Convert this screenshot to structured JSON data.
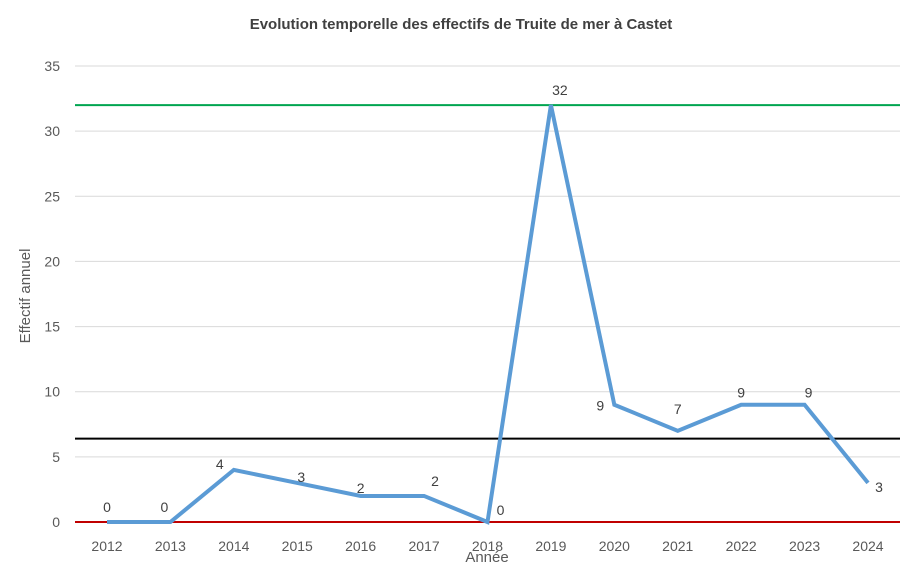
{
  "chart_data": {
    "type": "line",
    "title": "Evolution temporelle des effectifs de Truite de mer à Castet",
    "xlabel": "Année",
    "ylabel": "Effectif annuel",
    "categories": [
      "2012",
      "2013",
      "2014",
      "2015",
      "2016",
      "2017",
      "2018",
      "2019",
      "2020",
      "2021",
      "2022",
      "2023",
      "2024"
    ],
    "yticks": [
      "0",
      "5",
      "10",
      "15",
      "20",
      "25",
      "30",
      "35"
    ],
    "ylim": [
      0,
      35
    ],
    "grid": true,
    "series": [
      {
        "values": [
          0,
          0,
          4,
          3,
          2,
          2,
          0,
          32,
          9,
          7,
          9,
          9,
          3
        ],
        "labels": [
          "0",
          "0",
          "4",
          "3",
          "2",
          "2",
          "0",
          "32",
          "9",
          "7",
          "9",
          "9",
          "3"
        ],
        "color": "#5b9bd5"
      }
    ],
    "reference_lines": [
      {
        "value": 32,
        "color": "#00a550"
      },
      {
        "value": 6.4,
        "color": "#000000"
      },
      {
        "value": 0,
        "color": "#c00000"
      }
    ]
  }
}
